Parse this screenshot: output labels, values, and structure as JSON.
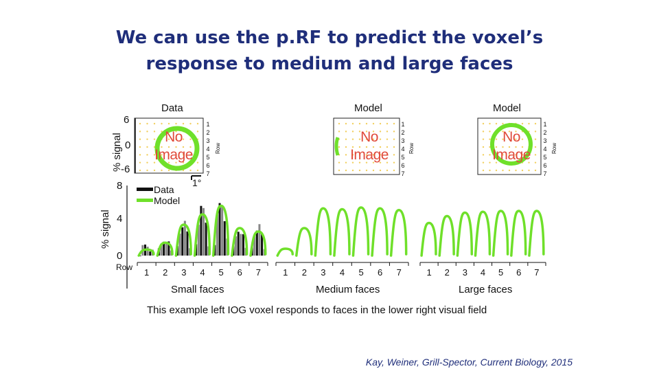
{
  "slide": {
    "title_line1": "We can use the p.RF to predict the voxel’s",
    "title_line2": "response to medium and large faces",
    "caption": "This example left IOG voxel responds to faces in the lower right visual field",
    "citation": "Kay, Weiner, Grill-Spector, Current Biology, 2015"
  },
  "top_panels": {
    "ylabel": "% signal",
    "yticks": [
      "6",
      "0",
      "-6"
    ],
    "row_axis_label": "Row",
    "row_numbers": [
      "1",
      "2",
      "3",
      "4",
      "5",
      "6",
      "7"
    ],
    "panel_titles": [
      "Data",
      "Model",
      "Model"
    ],
    "placeholder_line1": "No",
    "placeholder_line2": "Image",
    "scale_bar_label": "1°"
  },
  "chart_data": {
    "type": "bar",
    "ylabel": "% signal",
    "yticks": [
      "8",
      "4",
      "0"
    ],
    "ylim": [
      -1,
      8.5
    ],
    "legend": {
      "placement": "top-left",
      "entries": [
        "Data",
        "Model"
      ]
    },
    "row_label": "Row",
    "colors": {
      "data": "#111111",
      "data_light": "#888888",
      "model": "#6fe02a"
    },
    "groups": [
      {
        "name": "Small faces",
        "categories": [
          "1",
          "2",
          "3",
          "4",
          "5",
          "6",
          "7"
        ],
        "data_values": [
          1.2,
          1.8,
          3.8,
          5.6,
          6.2,
          3.0,
          3.4
        ],
        "model_values": [
          0.7,
          1.5,
          3.6,
          4.8,
          5.8,
          3.2,
          2.8
        ]
      },
      {
        "name": "Medium faces",
        "categories": [
          "1",
          "2",
          "3",
          "4",
          "5",
          "6",
          "7"
        ],
        "model_values": [
          0.8,
          3.2,
          5.5,
          5.4,
          5.6,
          5.5,
          5.3
        ]
      },
      {
        "name": "Large faces",
        "categories": [
          "1",
          "2",
          "3",
          "4",
          "5",
          "6",
          "7"
        ],
        "model_values": [
          3.8,
          4.6,
          5.0,
          5.1,
          5.2,
          5.2,
          5.2
        ]
      }
    ]
  }
}
